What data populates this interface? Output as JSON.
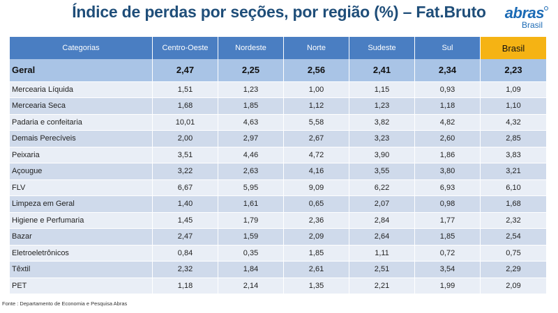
{
  "slide": {
    "title": "Índice de perdas por seções, por região (%) – Fat.Bruto",
    "footer": "Fonte : Departamento de Economia e Pesquisa Abras"
  },
  "logo": {
    "word": "abras",
    "sub": "Brasil"
  },
  "table": {
    "headers": [
      "Categorias",
      "Centro-Oeste",
      "Nordeste",
      "Norte",
      "Sudeste",
      "Sul",
      "Brasil"
    ],
    "geral": [
      "Geral",
      "2,47",
      "2,25",
      "2,56",
      "2,41",
      "2,34",
      "2,23"
    ],
    "rows": [
      [
        "Mercearia Líquida",
        "1,51",
        "1,23",
        "1,00",
        "1,15",
        "0,93",
        "1,09"
      ],
      [
        "Mercearia Seca",
        "1,68",
        "1,85",
        "1,12",
        "1,23",
        "1,18",
        "1,10"
      ],
      [
        "Padaria e confeitaria",
        "10,01",
        "4,63",
        "5,58",
        "3,82",
        "4,82",
        "4,32"
      ],
      [
        "Demais Perecíveis",
        "2,00",
        "2,97",
        "2,67",
        "3,23",
        "2,60",
        "2,85"
      ],
      [
        "Peixaria",
        "3,51",
        "4,46",
        "4,72",
        "3,90",
        "1,86",
        "3,83"
      ],
      [
        "Açougue",
        "3,22",
        "2,63",
        "4,16",
        "3,55",
        "3,80",
        "3,21"
      ],
      [
        "FLV",
        "6,67",
        "5,95",
        "9,09",
        "6,22",
        "6,93",
        "6,10"
      ],
      [
        "Limpeza em Geral",
        "1,40",
        "1,61",
        "0,65",
        "2,07",
        "0,98",
        "1,68"
      ],
      [
        "Higiene e Perfumaria",
        "1,45",
        "1,79",
        "2,36",
        "2,84",
        "1,77",
        "2,32"
      ],
      [
        "Bazar",
        "2,47",
        "1,59",
        "2,09",
        "2,64",
        "1,85",
        "2,54"
      ],
      [
        "Eletroeletrônicos",
        "0,84",
        "0,35",
        "1,85",
        "1,11",
        "0,72",
        "0,75"
      ],
      [
        "Têxtil",
        "2,32",
        "1,84",
        "2,61",
        "2,51",
        "3,54",
        "2,29"
      ],
      [
        "PET",
        "1,18",
        "2,14",
        "1,35",
        "2,21",
        "1,99",
        "2,09"
      ]
    ]
  },
  "colors": {
    "title": "#1f4e79",
    "header_bg": "#4a7ec2",
    "brasil_header_bg": "#f5b314",
    "geral_bg": "#a9c4e6",
    "row_light": "#e9eef6",
    "row_dark": "#cfdaeb",
    "logo": "#1c6bb5"
  }
}
